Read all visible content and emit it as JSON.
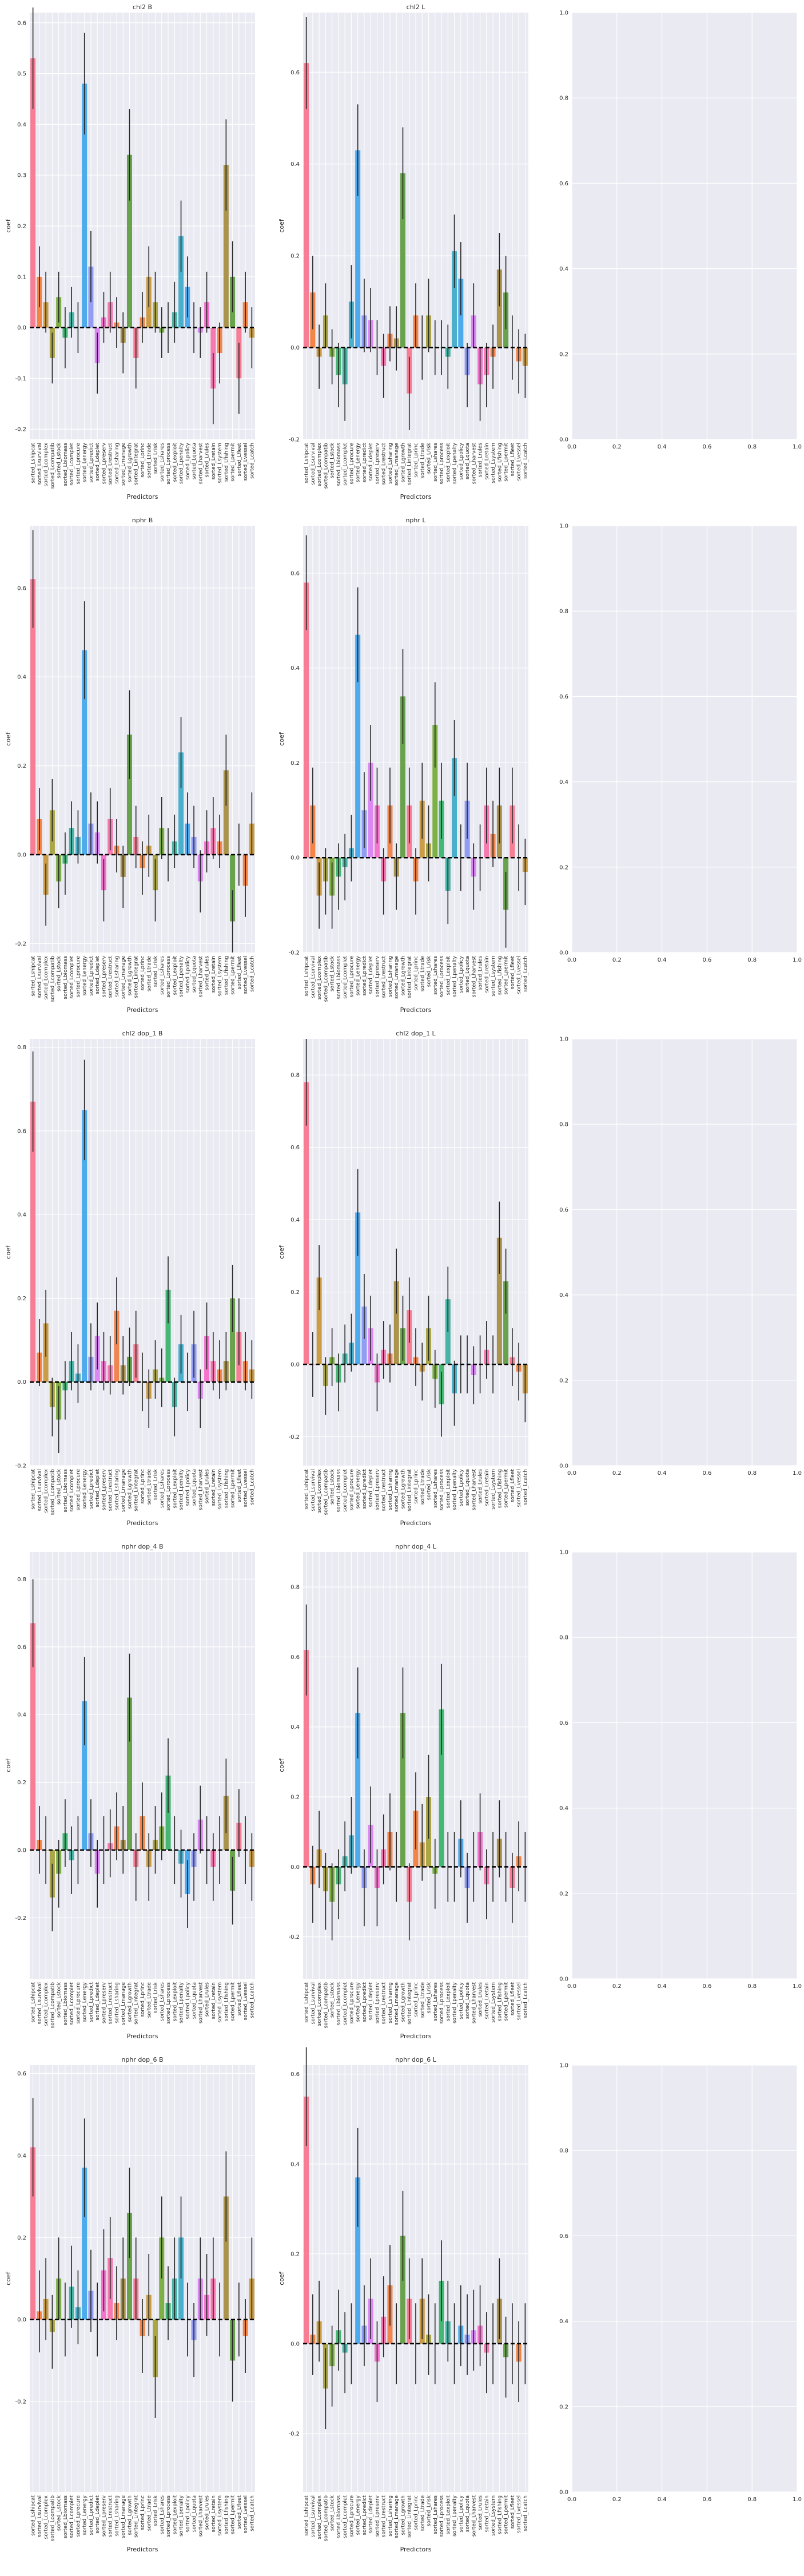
{
  "figure": {
    "background": "#ffffff",
    "axes_face": "#eaeaf2",
    "grid_color": "#ffffff",
    "zero_line_color": "#000000",
    "errorbar_color": "#262626"
  },
  "category_labels": [
    "sorted_Lshipcat",
    "sorted_Lsurvival",
    "sorted_Lcomplex",
    "sorted_Lcompatib",
    "sorted_Lstock",
    "sorted_Lbiomass",
    "sorted_Lcomplet",
    "sorted_Lprocure",
    "sorted_Lenergy",
    "sorted_Lpredict",
    "sorted_Ldeplet",
    "sorted_Lpreserv",
    "sorted_Lrestruct",
    "sorted_Lsharing",
    "sorted_Lmanage",
    "sorted_Lgrowth",
    "sorted_Lintegrat",
    "sorted_Lprinc",
    "sorted_Ltrade",
    "sorted_Lrisk",
    "sorted_Lshares",
    "sorted_Lprocess",
    "sorted_Lexploit",
    "sorted_Lpenalty",
    "sorted_Lpolicy",
    "sorted_Lquota",
    "sorted_Lharvest",
    "sorted_Lrules",
    "sorted_Lretain",
    "sorted_Lsystem",
    "sorted_Lfishing",
    "sorted_Lpermit",
    "sorted_Lfleet",
    "sorted_Lvessel",
    "sorted_Lcatch"
  ],
  "bar_colors": [
    "#f77189",
    "#f37932",
    "#c69432",
    "#a39e32",
    "#71aa31",
    "#32b166",
    "#35ad9c",
    "#38a9c5",
    "#3ba3ec",
    "#8794f4",
    "#d97cf4",
    "#f567c9",
    "#f66ba8",
    "#ef7b3e",
    "#a3893a",
    "#5a9a3a"
  ],
  "chart_data": [
    {
      "type": "bar",
      "title": "chl2 B",
      "xlabel": "Predictors",
      "ylabel": "coef",
      "ylim": [
        -0.22,
        0.62
      ],
      "yticks": [
        -0.2,
        -0.1,
        0.0,
        0.1,
        0.2,
        0.3,
        0.4,
        0.5,
        0.6
      ],
      "values": [
        0.53,
        0.1,
        0.05,
        -0.06,
        0.06,
        -0.02,
        0.03,
        0.0,
        0.48,
        0.12,
        -0.07,
        0.02,
        0.05,
        0.01,
        -0.03,
        0.34,
        -0.06,
        0.02,
        0.1,
        0.05,
        -0.01,
        0.0,
        0.03,
        0.18,
        0.08,
        0.0,
        -0.01,
        0.05,
        -0.12,
        -0.05,
        0.32,
        0.1,
        -0.1,
        0.05,
        -0.02
      ],
      "errors": [
        0.1,
        0.06,
        0.06,
        0.05,
        0.05,
        0.06,
        0.05,
        0.05,
        0.1,
        0.07,
        0.06,
        0.05,
        0.06,
        0.05,
        0.06,
        0.09,
        0.06,
        0.05,
        0.06,
        0.06,
        0.05,
        0.05,
        0.06,
        0.07,
        0.06,
        0.05,
        0.05,
        0.06,
        0.07,
        0.06,
        0.09,
        0.07,
        0.07,
        0.06,
        0.06
      ]
    },
    {
      "type": "bar",
      "title": "chl2 L",
      "xlabel": "Predictors",
      "ylabel": "coef",
      "ylim": [
        -0.2,
        0.73
      ],
      "yticks": [
        -0.2,
        0.0,
        0.2,
        0.4,
        0.6
      ],
      "values": [
        0.62,
        0.12,
        -0.02,
        0.07,
        -0.02,
        -0.06,
        -0.08,
        0.1,
        0.43,
        0.07,
        0.06,
        0.0,
        -0.04,
        0.03,
        0.02,
        0.38,
        -0.1,
        0.07,
        0.0,
        0.07,
        0.0,
        0.0,
        -0.02,
        0.21,
        0.15,
        -0.06,
        0.07,
        -0.08,
        -0.06,
        -0.02,
        0.17,
        0.12,
        0.0,
        -0.03,
        -0.04
      ],
      "errors": [
        0.1,
        0.08,
        0.07,
        0.07,
        0.06,
        0.07,
        0.08,
        0.08,
        0.1,
        0.08,
        0.07,
        0.06,
        0.07,
        0.06,
        0.07,
        0.1,
        0.08,
        0.07,
        0.07,
        0.08,
        0.06,
        0.06,
        0.07,
        0.08,
        0.08,
        0.07,
        0.07,
        0.08,
        0.07,
        0.07,
        0.08,
        0.08,
        0.07,
        0.07,
        0.07
      ]
    },
    {
      "type": "bar",
      "title": "nphr B",
      "xlabel": "Predictors",
      "ylabel": "coef",
      "ylim": [
        -0.22,
        0.74
      ],
      "yticks": [
        -0.2,
        0.0,
        0.2,
        0.4,
        0.6
      ],
      "values": [
        0.62,
        0.08,
        -0.09,
        0.1,
        -0.06,
        -0.02,
        0.06,
        0.04,
        0.46,
        0.07,
        0.05,
        -0.08,
        0.08,
        0.02,
        -0.05,
        0.27,
        0.04,
        -0.03,
        0.02,
        -0.08,
        0.06,
        0.0,
        0.03,
        0.23,
        0.07,
        0.04,
        -0.06,
        0.03,
        0.06,
        0.03,
        0.19,
        -0.15,
        0.0,
        -0.07,
        0.07
      ],
      "errors": [
        0.11,
        0.07,
        0.07,
        0.07,
        0.06,
        0.07,
        0.06,
        0.06,
        0.11,
        0.07,
        0.07,
        0.07,
        0.07,
        0.06,
        0.07,
        0.1,
        0.07,
        0.06,
        0.07,
        0.07,
        0.07,
        0.06,
        0.06,
        0.08,
        0.07,
        0.07,
        0.07,
        0.07,
        0.07,
        0.06,
        0.08,
        0.07,
        0.07,
        0.07,
        0.07
      ]
    },
    {
      "type": "bar",
      "title": "nphr L",
      "xlabel": "Predictors",
      "ylabel": "coef",
      "ylim": [
        -0.2,
        0.7
      ],
      "yticks": [
        -0.2,
        0.0,
        0.2,
        0.4,
        0.6
      ],
      "values": [
        0.58,
        0.11,
        -0.08,
        -0.05,
        -0.08,
        -0.04,
        -0.02,
        0.02,
        0.47,
        0.1,
        0.2,
        0.11,
        -0.05,
        0.11,
        -0.04,
        0.34,
        0.11,
        -0.05,
        0.12,
        0.03,
        0.28,
        0.12,
        -0.07,
        0.21,
        0.0,
        0.12,
        -0.04,
        0.0,
        0.11,
        0.05,
        0.11,
        -0.11,
        0.11,
        0.0,
        -0.03
      ],
      "errors": [
        0.1,
        0.08,
        0.07,
        0.07,
        0.07,
        0.07,
        0.07,
        0.07,
        0.1,
        0.08,
        0.08,
        0.08,
        0.07,
        0.08,
        0.07,
        0.1,
        0.08,
        0.07,
        0.08,
        0.08,
        0.09,
        0.08,
        0.07,
        0.08,
        0.07,
        0.08,
        0.07,
        0.07,
        0.08,
        0.07,
        0.08,
        0.08,
        0.08,
        0.07,
        0.07
      ]
    },
    {
      "type": "bar",
      "title": "chl2 dop_1 B",
      "xlabel": "Predictors",
      "ylabel": "coef",
      "ylim": [
        -0.2,
        0.82
      ],
      "yticks": [
        -0.2,
        0.0,
        0.2,
        0.4,
        0.6,
        0.8
      ],
      "values": [
        0.67,
        0.07,
        0.14,
        -0.06,
        -0.09,
        -0.02,
        0.05,
        0.02,
        0.65,
        0.06,
        0.11,
        0.05,
        0.04,
        0.17,
        0.04,
        0.06,
        0.09,
        0.0,
        -0.04,
        0.03,
        0.01,
        0.22,
        -0.06,
        0.09,
        0.0,
        0.09,
        -0.04,
        0.11,
        0.05,
        0.03,
        0.05,
        0.2,
        0.12,
        0.05,
        0.03
      ],
      "errors": [
        0.12,
        0.08,
        0.08,
        0.07,
        0.08,
        0.07,
        0.07,
        0.07,
        0.12,
        0.08,
        0.08,
        0.07,
        0.07,
        0.08,
        0.07,
        0.07,
        0.08,
        0.07,
        0.07,
        0.07,
        0.07,
        0.08,
        0.07,
        0.07,
        0.07,
        0.08,
        0.07,
        0.08,
        0.07,
        0.07,
        0.07,
        0.08,
        0.08,
        0.07,
        0.07
      ]
    },
    {
      "type": "bar",
      "title": "chl2 dop_1 L",
      "xlabel": "Predictors",
      "ylabel": "coef",
      "ylim": [
        -0.28,
        0.9
      ],
      "yticks": [
        -0.2,
        0.0,
        0.2,
        0.4,
        0.6,
        0.8
      ],
      "values": [
        0.78,
        0.0,
        0.24,
        -0.06,
        0.02,
        -0.05,
        0.03,
        0.06,
        0.42,
        0.16,
        0.1,
        -0.05,
        0.04,
        0.03,
        0.23,
        0.1,
        0.15,
        0.02,
        -0.02,
        0.1,
        -0.04,
        -0.11,
        0.18,
        -0.08,
        0.0,
        0.0,
        -0.03,
        0.0,
        0.04,
        0.0,
        0.35,
        0.23,
        0.02,
        -0.02,
        -0.08
      ],
      "errors": [
        0.12,
        0.09,
        0.09,
        0.08,
        0.08,
        0.08,
        0.08,
        0.08,
        0.12,
        0.09,
        0.09,
        0.08,
        0.08,
        0.08,
        0.09,
        0.09,
        0.09,
        0.08,
        0.08,
        0.09,
        0.08,
        0.09,
        0.09,
        0.09,
        0.08,
        0.08,
        0.08,
        0.08,
        0.08,
        0.08,
        0.1,
        0.09,
        0.08,
        0.08,
        0.08
      ]
    },
    {
      "type": "bar",
      "title": "nphr dop_4 B",
      "xlabel": "Predictors",
      "ylabel": "coef",
      "ylim": [
        -0.38,
        0.88
      ],
      "yticks": [
        -0.2,
        0.0,
        0.2,
        0.4,
        0.6,
        0.8
      ],
      "values": [
        0.67,
        0.03,
        0.0,
        -0.14,
        -0.07,
        0.05,
        -0.03,
        0.0,
        0.44,
        0.05,
        -0.07,
        0.0,
        0.02,
        0.07,
        0.03,
        0.45,
        -0.05,
        0.1,
        -0.05,
        0.03,
        0.07,
        0.22,
        0.0,
        -0.04,
        -0.13,
        -0.05,
        0.09,
        0.0,
        -0.05,
        0.0,
        0.16,
        -0.12,
        0.08,
        0.0,
        -0.05
      ],
      "errors": [
        0.13,
        0.1,
        0.1,
        0.1,
        0.1,
        0.1,
        0.1,
        0.1,
        0.13,
        0.1,
        0.1,
        0.1,
        0.1,
        0.1,
        0.1,
        0.13,
        0.1,
        0.1,
        0.1,
        0.1,
        0.1,
        0.11,
        0.1,
        0.1,
        0.1,
        0.1,
        0.1,
        0.1,
        0.1,
        0.1,
        0.11,
        0.1,
        0.1,
        0.1,
        0.1
      ]
    },
    {
      "type": "bar",
      "title": "nphr dop_4 L",
      "xlabel": "Predictors",
      "ylabel": "coef",
      "ylim": [
        -0.32,
        0.9
      ],
      "yticks": [
        -0.2,
        0.0,
        0.2,
        0.4,
        0.6,
        0.8
      ],
      "values": [
        0.62,
        -0.05,
        0.05,
        -0.07,
        -0.1,
        -0.05,
        0.03,
        0.09,
        0.44,
        -0.06,
        0.12,
        -0.06,
        0.05,
        0.1,
        0.0,
        0.44,
        -0.1,
        0.16,
        0.07,
        0.2,
        -0.02,
        0.45,
        0.0,
        0.0,
        0.08,
        -0.06,
        0.0,
        0.1,
        -0.05,
        0.0,
        0.08,
        0.0,
        -0.06,
        0.03,
        0.0
      ],
      "errors": [
        0.13,
        0.11,
        0.11,
        0.11,
        0.11,
        0.1,
        0.1,
        0.11,
        0.13,
        0.11,
        0.11,
        0.11,
        0.1,
        0.11,
        0.1,
        0.13,
        0.11,
        0.11,
        0.11,
        0.12,
        0.1,
        0.13,
        0.1,
        0.1,
        0.11,
        0.1,
        0.1,
        0.11,
        0.1,
        0.1,
        0.11,
        0.1,
        0.1,
        0.1,
        0.1
      ]
    },
    {
      "type": "bar",
      "title": "nphr dop_6 B",
      "xlabel": "Predictors",
      "ylabel": "coef",
      "ylim": [
        -0.42,
        0.62
      ],
      "yticks": [
        -0.2,
        0.0,
        0.2,
        0.4,
        0.6
      ],
      "values": [
        0.42,
        0.02,
        0.05,
        -0.03,
        0.1,
        0.0,
        0.08,
        0.03,
        0.37,
        0.07,
        0.0,
        0.12,
        0.15,
        0.04,
        0.1,
        0.26,
        0.1,
        -0.04,
        0.06,
        -0.14,
        0.2,
        0.04,
        0.1,
        0.2,
        0.0,
        -0.05,
        0.1,
        0.06,
        0.1,
        0.0,
        0.3,
        -0.1,
        0.0,
        -0.04,
        0.1
      ],
      "errors": [
        0.12,
        0.1,
        0.1,
        0.09,
        0.1,
        0.09,
        0.1,
        0.09,
        0.12,
        0.1,
        0.09,
        0.1,
        0.1,
        0.09,
        0.1,
        0.11,
        0.1,
        0.09,
        0.1,
        0.1,
        0.1,
        0.09,
        0.1,
        0.1,
        0.09,
        0.09,
        0.1,
        0.1,
        0.1,
        0.09,
        0.11,
        0.1,
        0.09,
        0.09,
        0.1
      ]
    },
    {
      "type": "bar",
      "title": "nphr dop_6 L",
      "xlabel": "Predictors",
      "ylabel": "coef",
      "ylim": [
        -0.33,
        0.62
      ],
      "yticks": [
        -0.2,
        0.0,
        0.2,
        0.4,
        0.6
      ],
      "values": [
        0.55,
        0.02,
        0.05,
        -0.1,
        -0.05,
        0.03,
        -0.02,
        0.0,
        0.37,
        0.04,
        0.1,
        -0.04,
        0.06,
        0.13,
        0.0,
        0.24,
        0.1,
        0.0,
        0.1,
        0.02,
        0.0,
        0.14,
        0.05,
        0.0,
        0.04,
        0.02,
        0.03,
        0.04,
        -0.02,
        0.0,
        0.1,
        -0.03,
        0.0,
        -0.04,
        0.0
      ],
      "errors": [
        0.11,
        0.09,
        0.09,
        0.09,
        0.09,
        0.09,
        0.09,
        0.09,
        0.11,
        0.09,
        0.09,
        0.09,
        0.09,
        0.09,
        0.09,
        0.1,
        0.09,
        0.09,
        0.09,
        0.09,
        0.09,
        0.09,
        0.09,
        0.09,
        0.09,
        0.09,
        0.09,
        0.09,
        0.09,
        0.09,
        0.09,
        0.09,
        0.09,
        0.09,
        0.09
      ]
    }
  ],
  "empty_axes": {
    "xticks": [
      "0.0",
      "0.2",
      "0.4",
      "0.6",
      "0.8",
      "1.0"
    ],
    "yticks": [
      "0.0",
      "0.2",
      "0.4",
      "0.6",
      "0.8",
      "1.0"
    ]
  }
}
